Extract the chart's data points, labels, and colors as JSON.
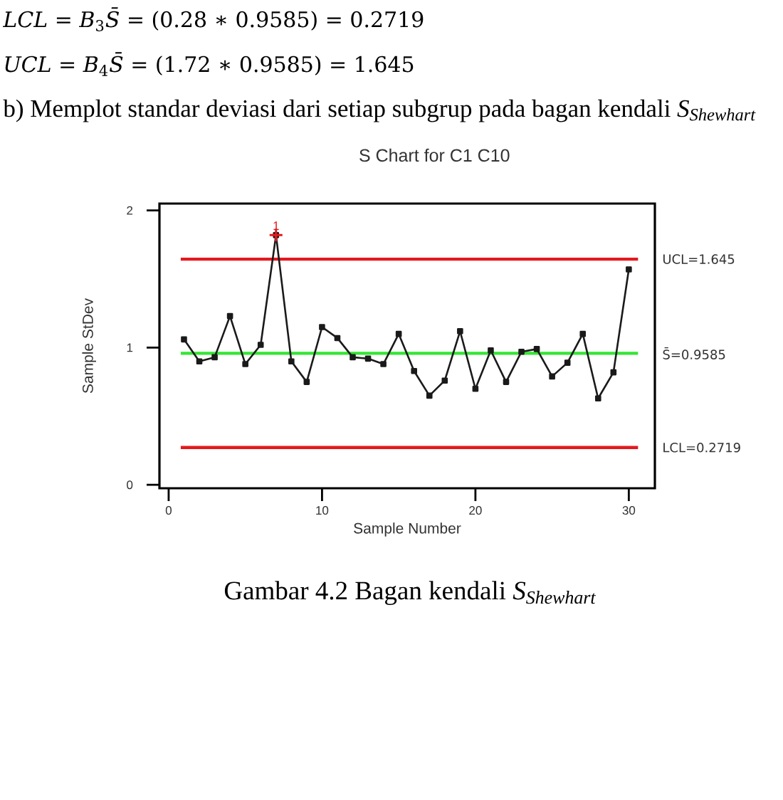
{
  "chart_data": {
    "type": "line",
    "title": "S Chart for C1 C10",
    "xlabel": "Sample Number",
    "ylabel": "Sample StDev",
    "x": [
      1,
      2,
      3,
      4,
      5,
      6,
      7,
      8,
      9,
      10,
      11,
      12,
      13,
      14,
      15,
      16,
      17,
      18,
      19,
      20,
      21,
      22,
      23,
      24,
      25,
      26,
      27,
      28,
      29,
      30
    ],
    "series": [
      {
        "color": "#1a1a1a",
        "marker": "square",
        "values": [
          1.06,
          0.9,
          0.93,
          1.23,
          0.88,
          1.02,
          1.82,
          0.9,
          0.75,
          1.15,
          1.07,
          0.93,
          0.92,
          0.88,
          1.1,
          0.83,
          0.65,
          0.76,
          1.12,
          0.7,
          0.98,
          0.75,
          0.97,
          0.99,
          0.79,
          0.89,
          1.1,
          0.63,
          0.82,
          1.57
        ]
      },
      {
        "type": "scatter",
        "color": "#e3191f",
        "marker": "cross",
        "x": [
          7
        ],
        "values": [
          1.82
        ]
      }
    ],
    "xlim": [
      -0.6,
      31.7
    ],
    "ylim": [
      -0.025,
      2.05
    ],
    "xticks": [
      0,
      10,
      20,
      30
    ],
    "yticks": [
      0,
      1,
      2
    ],
    "ref_lines": [
      {
        "axis": "y",
        "value": 1.645,
        "label": "UCL=1.645",
        "color": "#e3191f"
      },
      {
        "axis": "y",
        "value": 0.9585,
        "label": "S̄=0.9585",
        "color": "#33e633"
      },
      {
        "axis": "y",
        "value": 0.2719,
        "label": "LCL=0.2719",
        "color": "#e3191f"
      }
    ],
    "annotations": [
      {
        "text": "1",
        "x": 7,
        "y": 1.82
      },
      "*LCL* = *B*$_{3}$*S̄* = (0.28 ∗ 0.9585) = 0.2719",
      "*UCL* = *B*$_{4}$*S̄* = (1.72 ∗ 0.9585) = 1.645",
      "b) Memplot standar deviasi dari setiap subgrup pada bagan kendali *S$_{Shewhart}$*",
      "Gambar 4.2 Bagan kendali *S$_{Shewhart}$*"
    ]
  }
}
